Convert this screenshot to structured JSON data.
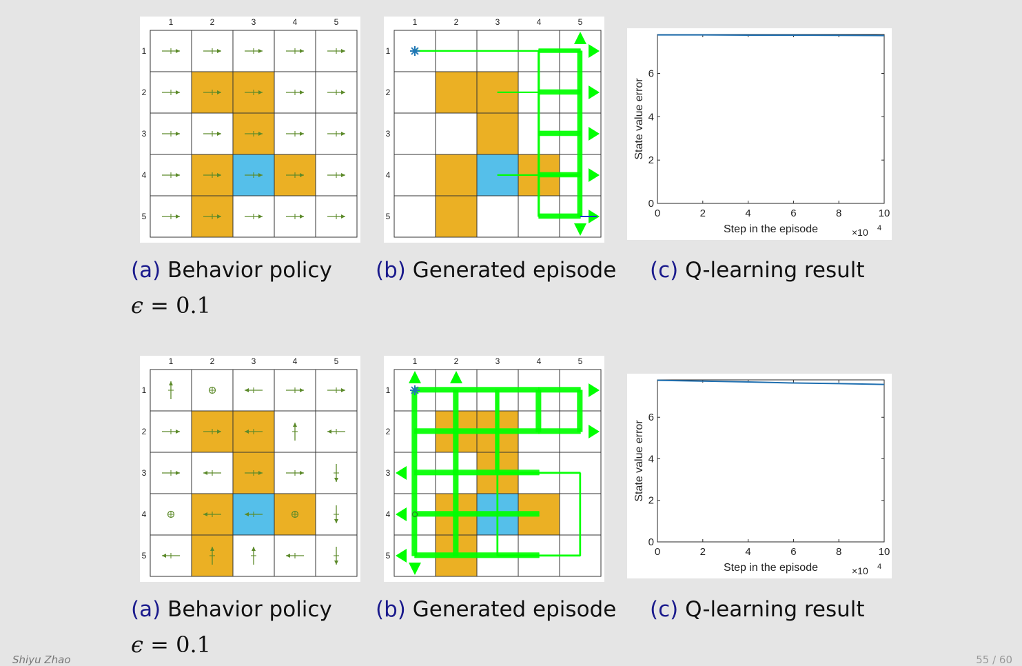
{
  "colors": {
    "obstacle": "#EBB024",
    "target": "#55BFEA",
    "arrow": "#5C8A2A",
    "path": "#00FF00",
    "start": "#1F77B4",
    "curve": "#1F6FB0"
  },
  "grid": {
    "col_labels": [
      "1",
      "2",
      "3",
      "4",
      "5"
    ],
    "row_labels": [
      "1",
      "2",
      "3",
      "4",
      "5"
    ],
    "obstacles": [
      [
        2,
        2
      ],
      [
        2,
        3
      ],
      [
        3,
        3
      ],
      [
        4,
        2
      ],
      [
        4,
        4
      ],
      [
        5,
        2
      ]
    ],
    "target": [
      4,
      3
    ],
    "start": [
      1,
      1
    ]
  },
  "rows": [
    {
      "policy": [
        [
          "right",
          "right",
          "right",
          "right",
          "right"
        ],
        [
          "right",
          "right",
          "right",
          "right",
          "right"
        ],
        [
          "right",
          "right",
          "right",
          "right",
          "right"
        ],
        [
          "right",
          "right",
          "right",
          "right",
          "right"
        ],
        [
          "right",
          "right",
          "right",
          "right",
          "right"
        ]
      ],
      "caption_a_label": "(a)",
      "caption_a_text": "Behavior policy",
      "caption_b_label": "(b)",
      "caption_b_text": "Generated episode",
      "caption_c_label": "(c)",
      "caption_c_text": "Q-learning result",
      "eps_symbol": "ϵ",
      "eps_value": "= 0.1",
      "chart_data": {
        "type": "line",
        "xlabel": "Step in the episode",
        "ylabel": "State value error",
        "x_multiplier": "×10",
        "x_multiplier_exp": "4",
        "xlim": [
          0,
          10
        ],
        "ylim": [
          0,
          7.8
        ],
        "x_ticks": [
          "0",
          "2",
          "4",
          "6",
          "8",
          "10"
        ],
        "y_ticks": [
          "0",
          "2",
          "4",
          "6"
        ],
        "series": [
          {
            "x": [
              0,
              2,
              4,
              6,
              8,
              10
            ],
            "values": [
              7.78,
              7.78,
              7.77,
              7.77,
              7.76,
              7.75
            ]
          }
        ]
      }
    },
    {
      "policy": [
        [
          "up",
          "stay",
          "left",
          "right",
          "right"
        ],
        [
          "right",
          "right",
          "left",
          "up",
          "left"
        ],
        [
          "right",
          "left",
          "right",
          "right",
          "down"
        ],
        [
          "stay",
          "left",
          "left",
          "stay",
          "down"
        ],
        [
          "left",
          "up",
          "up",
          "left",
          "down"
        ]
      ],
      "caption_a_label": "(a)",
      "caption_a_text": "Behavior policy",
      "caption_b_label": "(b)",
      "caption_b_text": "Generated episode",
      "caption_c_label": "(c)",
      "caption_c_text": "Q-learning result",
      "eps_symbol": "ϵ",
      "eps_value": "= 0.1",
      "chart_data": {
        "type": "line",
        "xlabel": "Step in the episode",
        "ylabel": "State value error",
        "x_multiplier": "×10",
        "x_multiplier_exp": "4",
        "xlim": [
          0,
          10
        ],
        "ylim": [
          0,
          7.8
        ],
        "x_ticks": [
          "0",
          "2",
          "4",
          "6",
          "8",
          "10"
        ],
        "y_ticks": [
          "0",
          "2",
          "4",
          "6"
        ],
        "series": [
          {
            "x": [
              0,
              2,
              4,
              6,
              8,
              10
            ],
            "values": [
              7.78,
              7.74,
              7.7,
              7.65,
              7.62,
              7.58
            ]
          }
        ]
      }
    }
  ],
  "footer": {
    "author": "Shiyu Zhao",
    "page": "55 / 60"
  }
}
